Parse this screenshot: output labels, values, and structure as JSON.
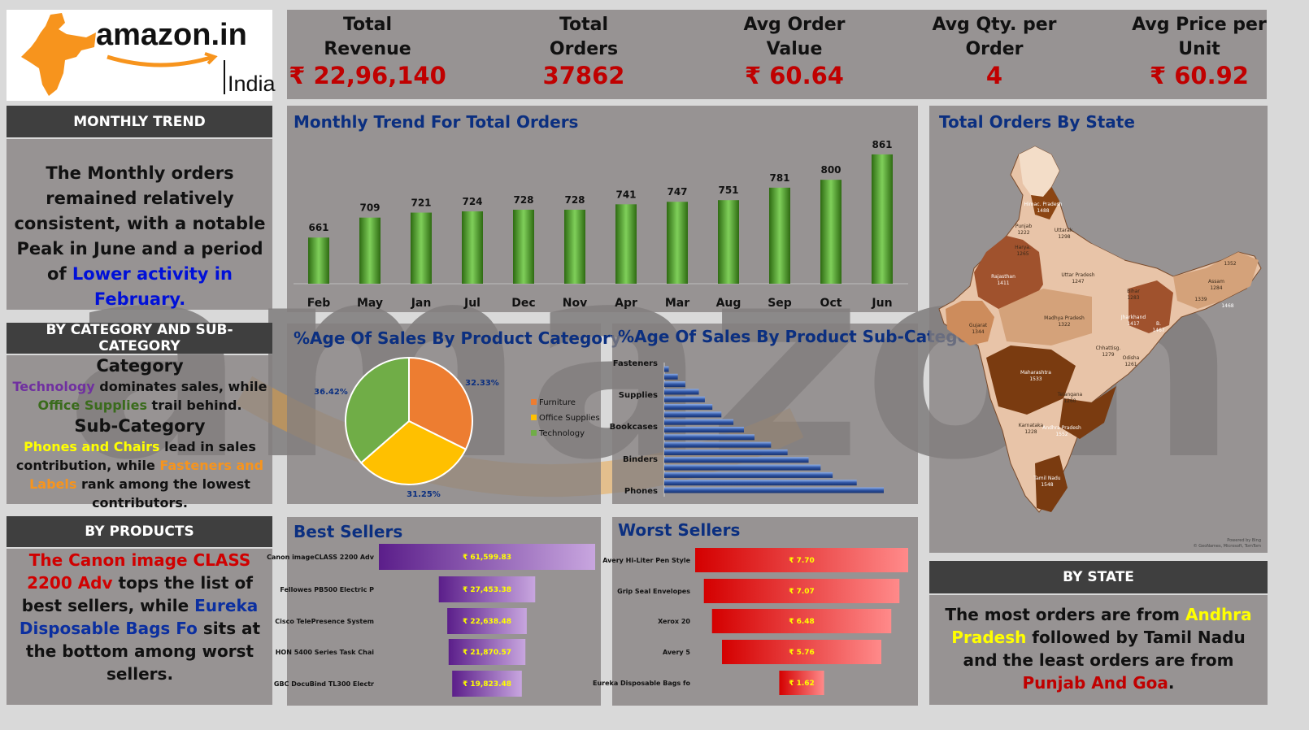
{
  "logo": {
    "brand": "amazon",
    "tld": ".in",
    "country": "India"
  },
  "kpis": [
    {
      "label": "Total Revenue",
      "value": "₹ 22,96,140"
    },
    {
      "label": "Total Orders",
      "value": "37862"
    },
    {
      "label": "Avg Order Value",
      "value": "₹ 60.64"
    },
    {
      "label": "Avg Qty. per Order",
      "value": "4"
    },
    {
      "label": "Avg Price per Unit",
      "value": "₹ 60.92"
    }
  ],
  "monthly": {
    "header": "MONTHLY TREND",
    "t1": "The Monthly orders remained relatively consistent, with a notable Peak in June and a period of ",
    "t2": "Lower activity in February."
  },
  "category": {
    "header": "BY CATEGORY AND SUB-CATEGORY",
    "cat_title": "Category",
    "cat_a": "Technology",
    "cat_b": " dominates sales, while ",
    "cat_c": "Office Supplies",
    "cat_d": " trail behind.",
    "sub_title": "Sub-Category",
    "sub_a": "Phones and Chairs",
    "sub_b": " lead in sales contribution, while ",
    "sub_c": "Fasteners and Labels",
    "sub_d": " rank among the lowest contributors."
  },
  "products": {
    "header": "BY PRODUCTS",
    "a": "The Canon image CLASS 2200 Adv",
    "b": " tops the list of best sellers, while ",
    "c": "Eureka Disposable Bags Fo",
    "d": " sits at the bottom among worst sellers."
  },
  "state": {
    "header": "BY STATE",
    "a": "The most orders are from ",
    "b": "Andhra Pradesh",
    "c": " followed by Tamil Nadu and the least orders are from ",
    "d": "Punjab And Goa",
    "e": "."
  },
  "titles": {
    "monthly_chart": "Monthly Trend For Total Orders",
    "pie": "%Age Of Sales By Product Category",
    "sub": "%Age Of Sales By Product Sub-Category",
    "best": "Best Sellers",
    "worst": "Worst Sellers",
    "map": "Total Orders By State",
    "map_credit_1": "Powered by Bing",
    "map_credit_2": "© GeoNames, Microsoft, TomTom"
  },
  "colors": {
    "green": "#4f9a2e",
    "pie_orange": "#ed7d31",
    "pie_yellow": "#ffc000",
    "pie_green": "#70ad47",
    "sub_blue": "#2f55a4",
    "best_purple": "#7030a0",
    "worst_red": "#e00000",
    "kpi_red": "#c00000",
    "title_blue": "#0b2f80"
  },
  "chart_data": [
    {
      "type": "bar",
      "title": "Monthly Trend For Total Orders",
      "categories": [
        "Feb",
        "May",
        "Jan",
        "Jul",
        "Dec",
        "Nov",
        "Apr",
        "Mar",
        "Aug",
        "Sep",
        "Oct",
        "Jun"
      ],
      "values": [
        661,
        709,
        721,
        724,
        728,
        728,
        741,
        747,
        751,
        781,
        800,
        861
      ],
      "ylim": [
        0,
        900
      ]
    },
    {
      "type": "pie",
      "title": "%Age Of Sales By Product Category",
      "categories": [
        "Furniture",
        "Office Supplies",
        "Technology"
      ],
      "values": [
        32.33,
        31.25,
        36.42
      ],
      "labels": [
        "32.33%",
        "31.25%",
        "36.42%"
      ],
      "legend": "right"
    },
    {
      "type": "bar",
      "orientation": "horizontal",
      "title": "%Age Of Sales By Product Sub-Category",
      "tick_labels": [
        "Fasteners",
        "Supplies",
        "Bookcases",
        "Binders",
        "Phones"
      ],
      "values": [
        0.3,
        0.9,
        1.4,
        2.3,
        2.7,
        3.2,
        3.8,
        4.6,
        5.3,
        6.0,
        7.1,
        8.2,
        9.6,
        10.4,
        11.2,
        12.8,
        14.6
      ]
    },
    {
      "type": "bar",
      "orientation": "horizontal",
      "title": "Best Sellers",
      "categories": [
        "Canon imageCLASS 2200 Adv",
        "Fellowes PB500 Electric P",
        "Cisco TelePresence System",
        "HON 5400 Series Task Chai",
        "GBC DocuBind TL300 Electr"
      ],
      "values": [
        61599.83,
        27453.38,
        22638.48,
        21870.57,
        19823.48
      ],
      "labels": [
        "₹ 61,599.83",
        "₹ 27,453.38",
        "₹ 22,638.48",
        "₹ 21,870.57",
        "₹ 19,823.48"
      ]
    },
    {
      "type": "bar",
      "orientation": "horizontal",
      "title": "Worst Sellers",
      "categories": [
        "Avery Hi-Liter Pen Style",
        "Grip Seal Envelopes",
        "Xerox 20",
        "Avery 5",
        "Eureka Disposable Bags fo"
      ],
      "values": [
        7.7,
        7.07,
        6.48,
        5.76,
        1.62
      ],
      "labels": [
        "₹ 7.70",
        "₹ 7.07",
        "₹ 6.48",
        "₹ 5.76",
        "₹ 1.62"
      ]
    },
    {
      "type": "map",
      "title": "Total Orders By State",
      "regions": [
        {
          "name": "Himac. Pradesh",
          "value": 1488
        },
        {
          "name": "Punjab",
          "value": 1222
        },
        {
          "name": "Uttarak.",
          "value": 1298
        },
        {
          "name": "Harya.",
          "value": 1265
        },
        {
          "name": "Rajasthan",
          "value": 1411
        },
        {
          "name": "Uttar Pradesh",
          "value": 1247
        },
        {
          "name": "Gujarat",
          "value": 1344
        },
        {
          "name": "Madhya Pradesh",
          "value": 1322
        },
        {
          "name": "Bihar",
          "value": 1283
        },
        {
          "name": "Jharkhand",
          "value": 1417
        },
        {
          "name": "B.",
          "value": 1467
        },
        {
          "name": "Assam",
          "value": 1284
        },
        {
          "name": "",
          "value": 1352
        },
        {
          "name": "",
          "value": 1339
        },
        {
          "name": "",
          "value": 1468
        },
        {
          "name": "Maharashtra",
          "value": 1533
        },
        {
          "name": "Chhattisg.",
          "value": 1279
        },
        {
          "name": "Odisha",
          "value": 1261
        },
        {
          "name": "Telangana",
          "value": 1260
        },
        {
          "name": "Karnataka",
          "value": 1228
        },
        {
          "name": "Andhra Pradesh",
          "value": 1552
        },
        {
          "name": "Tamil Nadu",
          "value": 1548
        }
      ]
    }
  ]
}
